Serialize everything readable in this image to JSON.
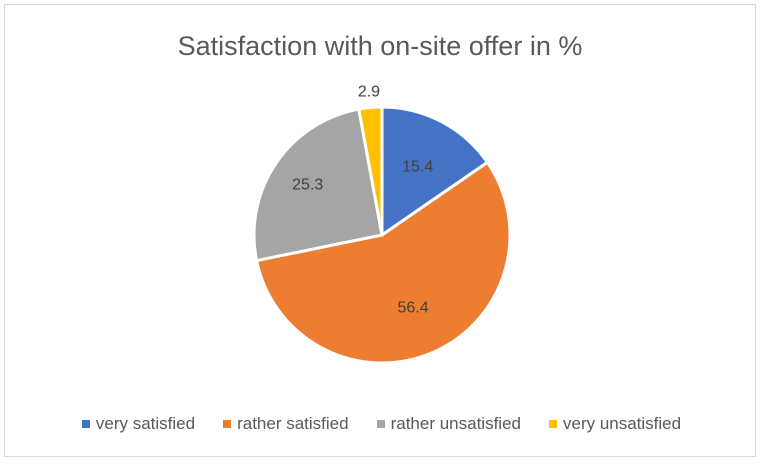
{
  "chart_data": {
    "type": "pie",
    "title": "Satisfaction with on-site offer in %",
    "categories": [
      "very satisfied",
      "rather satisfied",
      "rather unsatisfied",
      "very unsatisfied"
    ],
    "values": [
      15.4,
      56.4,
      25.3,
      2.9
    ],
    "data_labels": [
      "15.4",
      "56.4",
      "25.3",
      "2.9"
    ],
    "colors": [
      "#4472C4",
      "#ED7D31",
      "#A5A5A5",
      "#FFC000"
    ],
    "start_angle_deg": 0,
    "direction": "clockwise",
    "legend_position": "bottom"
  }
}
